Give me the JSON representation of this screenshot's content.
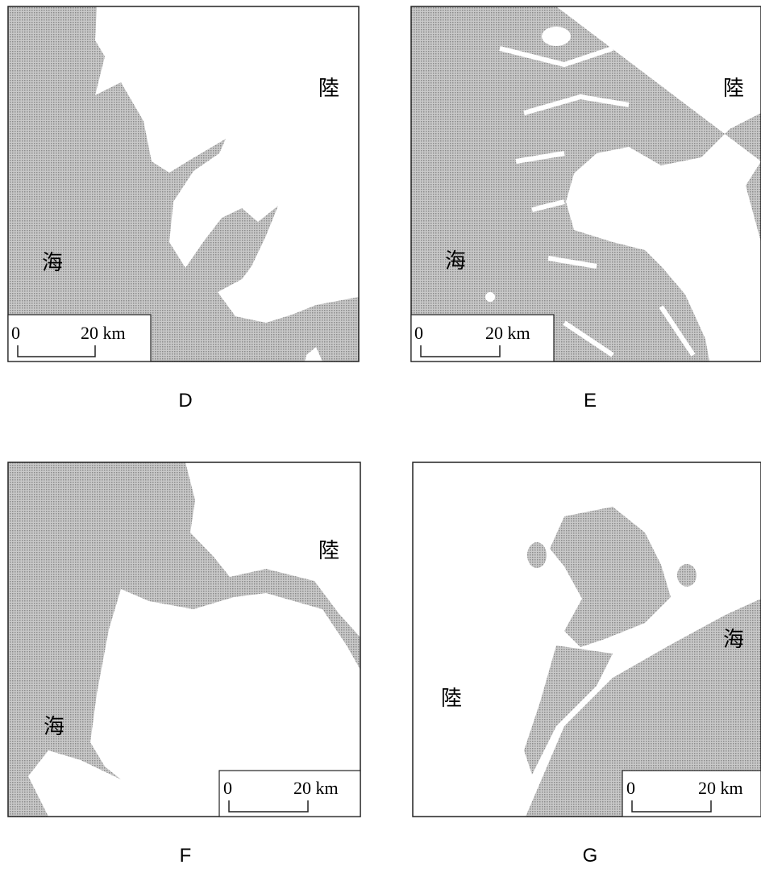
{
  "panels": [
    {
      "caption": "D",
      "land": "陸",
      "sea": "海",
      "scale": {
        "start": "0",
        "end": "20 km"
      }
    },
    {
      "caption": "E",
      "land": "陸",
      "sea": "海",
      "scale": {
        "start": "0",
        "end": "20 km"
      }
    },
    {
      "caption": "F",
      "land": "陸",
      "sea": "海",
      "scale": {
        "start": "0",
        "end": "20 km"
      }
    },
    {
      "caption": "G",
      "land": "陸",
      "sea": "海",
      "scale": {
        "start": "0",
        "end": "20 km"
      }
    }
  ]
}
